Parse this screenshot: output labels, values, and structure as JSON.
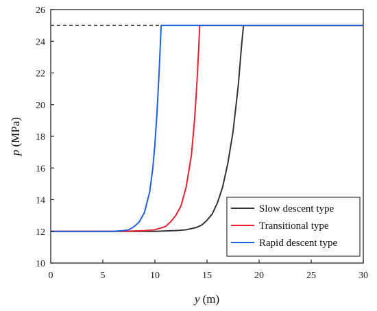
{
  "chart_data": {
    "type": "line",
    "title": "",
    "xlabel": {
      "var": "y",
      "unit": " (m)"
    },
    "ylabel": {
      "var": "p",
      "unit": " (MPa)"
    },
    "xlim": [
      0,
      30
    ],
    "ylim": [
      10,
      26
    ],
    "xticks": [
      0,
      5,
      10,
      15,
      20,
      25,
      30
    ],
    "yticks": [
      10,
      12,
      14,
      16,
      18,
      20,
      22,
      24,
      26
    ],
    "grid": false,
    "legend_position": "bottom-right",
    "reference_line": {
      "y": 25,
      "x_range": [
        0,
        10.5
      ],
      "style": "dashed",
      "color": "#000000"
    },
    "series": [
      {
        "name": "Slow descent type",
        "color": "#333333",
        "points": [
          [
            0,
            12
          ],
          [
            10,
            12
          ],
          [
            12,
            12.05
          ],
          [
            13,
            12.1
          ],
          [
            14,
            12.25
          ],
          [
            14.5,
            12.4
          ],
          [
            15,
            12.7
          ],
          [
            15.5,
            13.1
          ],
          [
            16,
            13.8
          ],
          [
            16.5,
            14.8
          ],
          [
            17,
            16.3
          ],
          [
            17.5,
            18.3
          ],
          [
            18,
            21.2
          ],
          [
            18.3,
            23.6
          ],
          [
            18.5,
            25
          ],
          [
            30,
            25
          ]
        ]
      },
      {
        "name": "Transitional type",
        "color": "#e8222e",
        "points": [
          [
            0,
            12
          ],
          [
            7,
            12
          ],
          [
            9,
            12.05
          ],
          [
            10,
            12.1
          ],
          [
            11,
            12.3
          ],
          [
            11.5,
            12.6
          ],
          [
            12,
            13
          ],
          [
            12.5,
            13.6
          ],
          [
            13,
            14.8
          ],
          [
            13.5,
            16.8
          ],
          [
            13.8,
            19
          ],
          [
            14,
            21
          ],
          [
            14.2,
            23.5
          ],
          [
            14.3,
            25
          ],
          [
            30,
            25
          ]
        ]
      },
      {
        "name": "Rapid descent type",
        "color": "#2060dd",
        "points": [
          [
            0,
            12
          ],
          [
            6,
            12
          ],
          [
            7,
            12.05
          ],
          [
            7.5,
            12.1
          ],
          [
            8,
            12.3
          ],
          [
            8.5,
            12.6
          ],
          [
            9,
            13.2
          ],
          [
            9.5,
            14.5
          ],
          [
            9.8,
            16
          ],
          [
            10,
            17.5
          ],
          [
            10.2,
            19.5
          ],
          [
            10.4,
            22
          ],
          [
            10.6,
            25
          ],
          [
            30,
            25
          ]
        ]
      }
    ]
  }
}
